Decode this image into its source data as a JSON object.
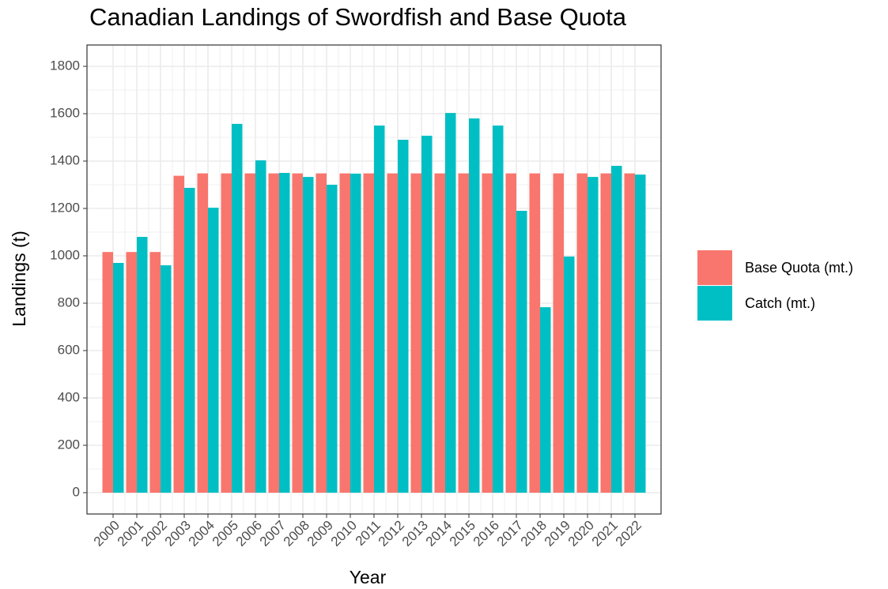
{
  "chart_data": {
    "type": "bar",
    "title": "Canadian Landings of Swordfish and Base Quota",
    "x_label": "Year",
    "y_label": "Landings (t)",
    "categories": [
      "2000",
      "2001",
      "2002",
      "2003",
      "2004",
      "2005",
      "2006",
      "2007",
      "2008",
      "2009",
      "2010",
      "2011",
      "2012",
      "2013",
      "2014",
      "2015",
      "2016",
      "2017",
      "2018",
      "2019",
      "2020",
      "2021",
      "2022"
    ],
    "series": [
      {
        "name": "Base Quota (mt.)",
        "color": "#f8766d",
        "values": [
          1016,
          1016,
          1016,
          1338,
          1348,
          1348,
          1348,
          1348,
          1348,
          1348,
          1348,
          1348,
          1348,
          1348,
          1348,
          1348,
          1348,
          1348,
          1348,
          1348,
          1348,
          1348,
          1348
        ]
      },
      {
        "name": "Catch (mt.)",
        "color": "#00bfc4",
        "values": [
          970,
          1080,
          960,
          1287,
          1203,
          1557,
          1403,
          1350,
          1333,
          1300,
          1347,
          1550,
          1490,
          1507,
          1603,
          1580,
          1550,
          1190,
          783,
          997,
          1333,
          1380,
          1343
        ]
      }
    ],
    "ylim": [
      -90,
      1890
    ],
    "yticks": [
      0,
      200,
      400,
      600,
      800,
      1000,
      1200,
      1400,
      1600,
      1800
    ],
    "y_minor_ticks": [
      100,
      300,
      500,
      700,
      900,
      1100,
      1300,
      1500,
      1700
    ],
    "grid": true,
    "legend": "right"
  }
}
